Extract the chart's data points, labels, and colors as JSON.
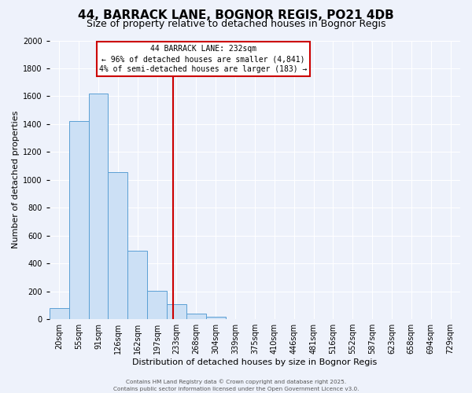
{
  "title": "44, BARRACK LANE, BOGNOR REGIS, PO21 4DB",
  "subtitle": "Size of property relative to detached houses in Bognor Regis",
  "xlabel": "Distribution of detached houses by size in Bognor Regis",
  "ylabel": "Number of detached properties",
  "bar_labels": [
    "20sqm",
    "55sqm",
    "91sqm",
    "126sqm",
    "162sqm",
    "197sqm",
    "233sqm",
    "268sqm",
    "304sqm",
    "339sqm",
    "375sqm",
    "410sqm",
    "446sqm",
    "481sqm",
    "516sqm",
    "552sqm",
    "587sqm",
    "623sqm",
    "658sqm",
    "694sqm",
    "729sqm"
  ],
  "bar_values": [
    80,
    1420,
    1620,
    1055,
    490,
    205,
    105,
    40,
    18,
    0,
    0,
    0,
    0,
    0,
    0,
    0,
    0,
    0,
    0,
    0,
    0
  ],
  "bar_width": 1.0,
  "bar_color": "#cce0f5",
  "bar_edge_color": "#5a9fd4",
  "vline_x": 5.82,
  "vline_color": "#cc0000",
  "annotation_title": "44 BARRACK LANE: 232sqm",
  "annotation_line1": "← 96% of detached houses are smaller (4,841)",
  "annotation_line2": "4% of semi-detached houses are larger (183) →",
  "annotation_box_color": "#cc0000",
  "annotation_bg": "#ffffff",
  "ylim": [
    0,
    2000
  ],
  "yticks": [
    0,
    200,
    400,
    600,
    800,
    1000,
    1200,
    1400,
    1600,
    1800,
    2000
  ],
  "background_color": "#eef2fb",
  "grid_color": "#ffffff",
  "title_fontsize": 11,
  "subtitle_fontsize": 9,
  "axis_label_fontsize": 8,
  "tick_fontsize": 7,
  "footer_line1": "Contains HM Land Registry data © Crown copyright and database right 2025.",
  "footer_line2": "Contains public sector information licensed under the Open Government Licence v3.0."
}
